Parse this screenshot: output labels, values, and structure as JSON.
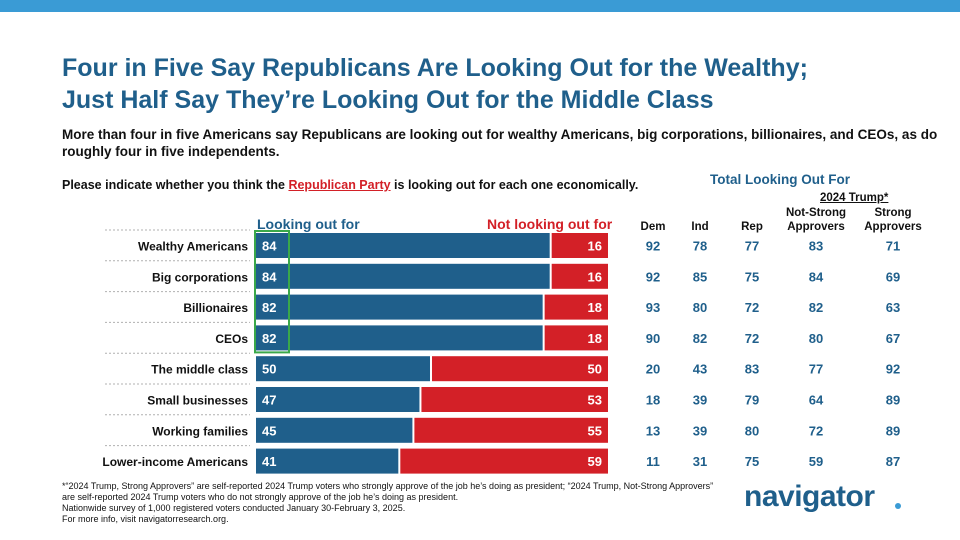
{
  "title": {
    "line1": "Four in Five Say Republicans Are Looking Out for the Wealthy;",
    "line2": "Just Half Say They’re Looking Out for the Middle Class"
  },
  "subtitle": "More than four in five Americans say Republicans are looking out for wealthy Americans, big corporations, billionaires, and CEOs, as do roughly four in five independents.",
  "question": {
    "prefix": "Please indicate whether you think the ",
    "party": "Republican Party",
    "suffix": " is looking out for each one economically."
  },
  "legend": {
    "left": "Looking out for",
    "right": "Not looking out for"
  },
  "table_header": {
    "total_label": "Total Looking Out For",
    "trump_label": "2024 Trump*",
    "columns": [
      "Dem",
      "Ind",
      "Rep",
      "Not-Strong Approvers",
      "Strong Approvers"
    ]
  },
  "colors": {
    "blue": "#1f5f8b",
    "red": "#d32027",
    "highlight": "#3aa84a",
    "accent": "#3a9bd5"
  },
  "chart_data": {
    "type": "bar",
    "orientation": "horizontal-stacked",
    "categories": [
      "Wealthy Americans",
      "Big corporations",
      "Billionaires",
      "CEOs",
      "The middle class",
      "Small businesses",
      "Working families",
      "Lower-income Americans"
    ],
    "series": [
      {
        "name": "Looking out for",
        "values": [
          84,
          84,
          82,
          82,
          50,
          47,
          45,
          41
        ]
      },
      {
        "name": "Not looking out for",
        "values": [
          16,
          16,
          18,
          18,
          50,
          53,
          55,
          59
        ]
      }
    ],
    "xlim": [
      0,
      100
    ],
    "highlighted_categories": [
      "Wealthy Americans",
      "Big corporations",
      "Billionaires",
      "CEOs"
    ],
    "table": {
      "columns": [
        "Dem",
        "Ind",
        "Rep",
        "Not-Strong Approvers",
        "Strong Approvers"
      ],
      "rows": [
        [
          92,
          78,
          77,
          83,
          71
        ],
        [
          92,
          85,
          75,
          84,
          69
        ],
        [
          93,
          80,
          72,
          82,
          63
        ],
        [
          90,
          82,
          72,
          80,
          67
        ],
        [
          20,
          43,
          83,
          77,
          92
        ],
        [
          18,
          39,
          79,
          64,
          89
        ],
        [
          13,
          39,
          80,
          72,
          89
        ],
        [
          11,
          31,
          75,
          59,
          87
        ]
      ]
    }
  },
  "footnotes": [
    "*“2024 Trump, Strong Approvers” are self-reported 2024 Trump voters who strongly approve of the job he’s doing as president; “2024 Trump, Not-Strong Approvers” are self-reported 2024 Trump voters who do not strongly approve of the job he’s doing as president.",
    "Nationwide survey of 1,000 registered voters conducted January 30-February 3, 2025.",
    "For more info, visit navigatorresearch.org."
  ],
  "logo": "navigator"
}
